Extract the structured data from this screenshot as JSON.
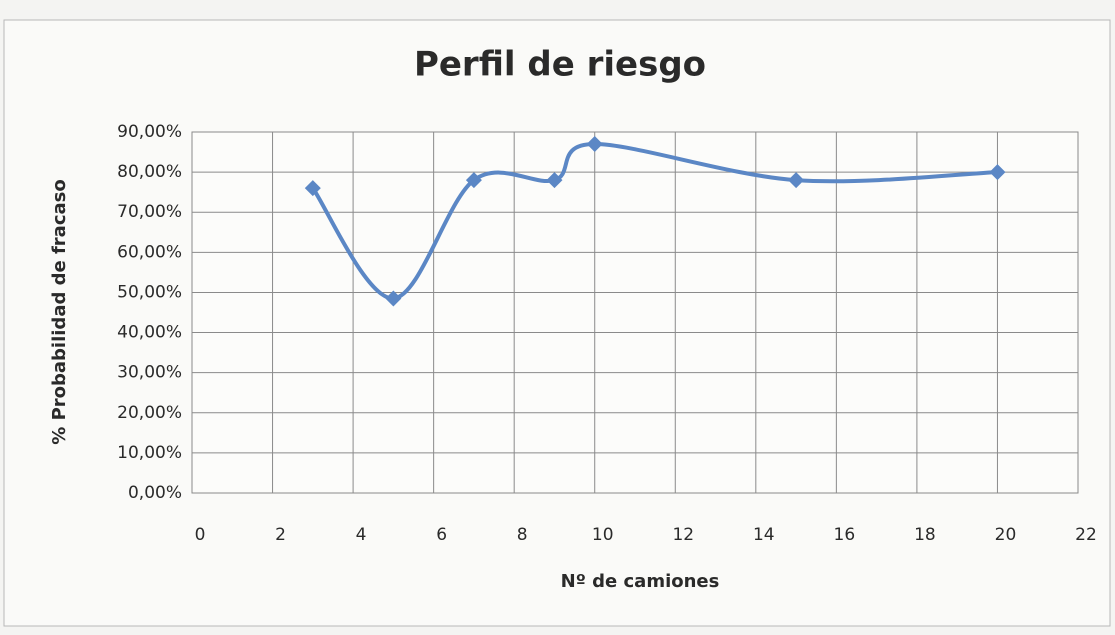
{
  "chart_data": {
    "type": "line",
    "title": "Perfil de riesgo",
    "x_label": "Nº de camiones",
    "y_label": "% Probabilidad de fracaso",
    "x": [
      3,
      5,
      7,
      9,
      10,
      15,
      20
    ],
    "series": [
      {
        "name": "Probabilidad de fracaso",
        "color": "#5b87c5",
        "values": [
          76,
          48.5,
          78,
          78,
          87,
          78,
          80
        ]
      }
    ],
    "smooth": true,
    "marker": "diamond",
    "legend": false,
    "xlim": [
      0,
      22
    ],
    "xticks": [
      0,
      2,
      4,
      6,
      8,
      10,
      12,
      14,
      16,
      18,
      20,
      22
    ],
    "ylim": [
      0,
      90
    ],
    "yticks": [
      {
        "value": 0,
        "label": "0,00%"
      },
      {
        "value": 10,
        "label": "10,00%"
      },
      {
        "value": 20,
        "label": "20,00%"
      },
      {
        "value": 30,
        "label": "30,00%"
      },
      {
        "value": 40,
        "label": "40,00%"
      },
      {
        "value": 50,
        "label": "50,00%"
      },
      {
        "value": 60,
        "label": "60,00%"
      },
      {
        "value": 70,
        "label": "70,00%"
      },
      {
        "value": 80,
        "label": "80,00%"
      },
      {
        "value": 90,
        "label": "90,00%"
      }
    ],
    "grid": true
  }
}
